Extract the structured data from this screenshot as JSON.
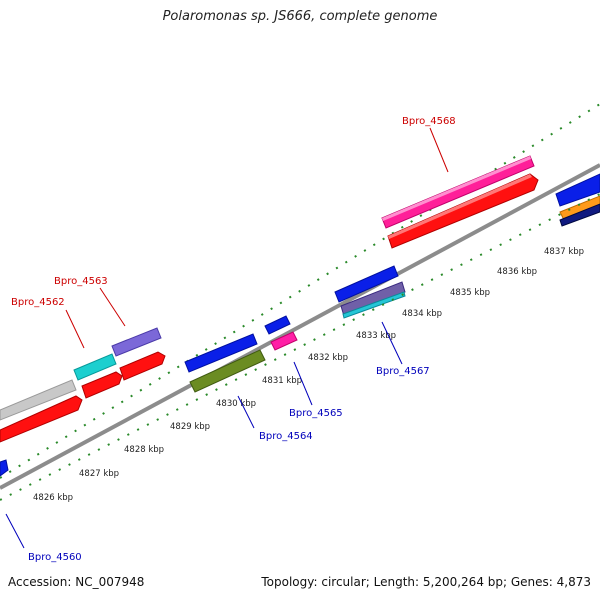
{
  "title": "Polaromonas sp. JS666, complete genome",
  "footer": {
    "accession": "Accession: NC_007948",
    "summary": "Topology: circular; Length: 5,200,264 bp; Genes: 4,873"
  },
  "colors": {
    "backbone": "#8c8c8c",
    "tick": "#2a8a2a",
    "label_forward": "#cc0000",
    "label_reverse": "#0000bb"
  },
  "kbp_ticks": [
    "4826 kbp",
    "4827 kbp",
    "4828 kbp",
    "4829 kbp",
    "4830 kbp",
    "4831 kbp",
    "4832 kbp",
    "4833 kbp",
    "4834 kbp",
    "4835 kbp",
    "4836 kbp",
    "4837 kbp"
  ],
  "gene_labels": [
    {
      "text": "Bpro_4568",
      "strand": "forward"
    },
    {
      "text": "Bpro_4563",
      "strand": "forward"
    },
    {
      "text": "Bpro_4562",
      "strand": "forward"
    },
    {
      "text": "Bpro_4567",
      "strand": "reverse"
    },
    {
      "text": "Bpro_4565",
      "strand": "reverse"
    },
    {
      "text": "Bpro_4564",
      "strand": "reverse"
    },
    {
      "text": "Bpro_4560",
      "strand": "reverse"
    }
  ]
}
